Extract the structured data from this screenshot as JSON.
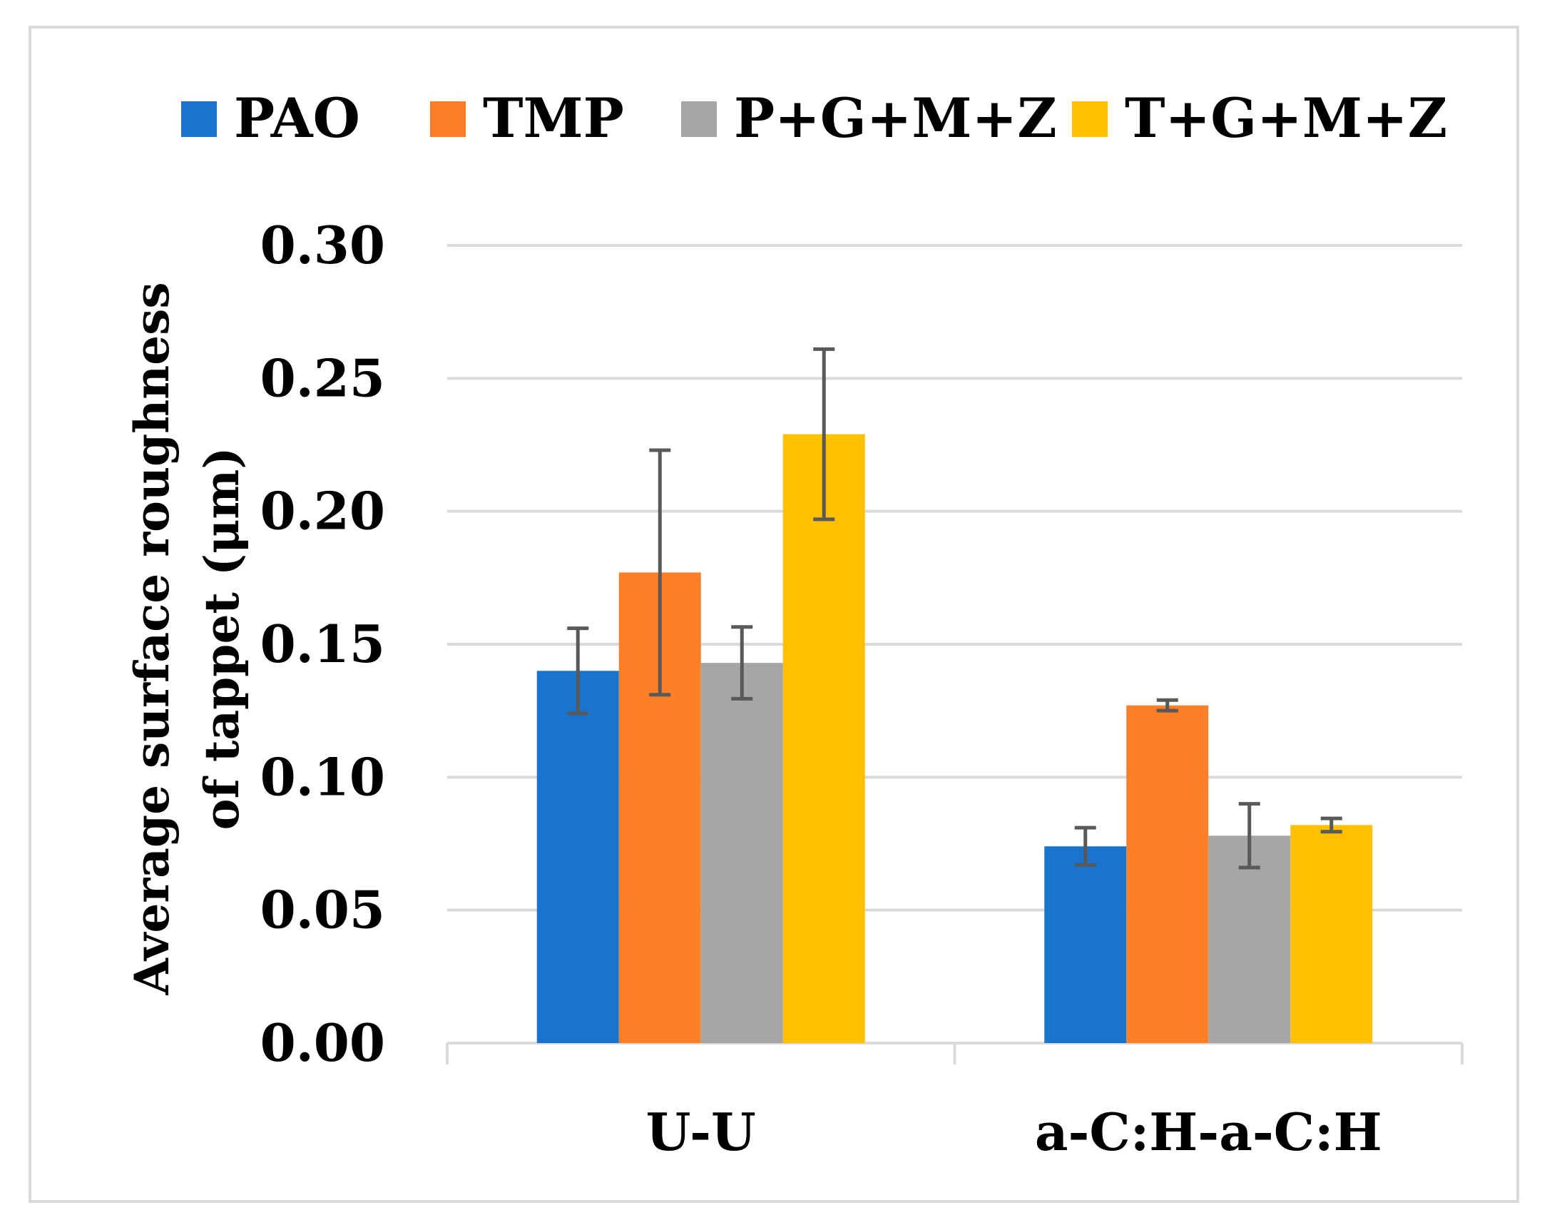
{
  "chart_data": {
    "type": "bar",
    "categories": [
      "U-U",
      "a-C:H-a-C:H"
    ],
    "series": [
      {
        "name": "PAO",
        "color": "#1874cd",
        "values": [
          0.14,
          0.074
        ],
        "errors": [
          0.016,
          0.007
        ]
      },
      {
        "name": "TMP",
        "color": "#fd7f28",
        "values": [
          0.177,
          0.127
        ],
        "errors": [
          0.046,
          0.002
        ]
      },
      {
        "name": "P+G+M+Z",
        "color": "#a6a6a6",
        "values": [
          0.143,
          0.078
        ],
        "errors": [
          0.0135,
          0.012
        ]
      },
      {
        "name": "T+G+M+Z",
        "color": "#ffc000",
        "values": [
          0.229,
          0.082
        ],
        "errors": [
          0.032,
          0.0025
        ]
      }
    ],
    "ylabel_lines": [
      "Average surface roughness",
      "of tappet (μm)"
    ],
    "ylim": [
      0,
      0.3
    ],
    "yticks": [
      "0.00",
      "0.05",
      "0.10",
      "0.15",
      "0.20",
      "0.25",
      "0.30"
    ],
    "grid": true,
    "legend_position": "top",
    "error_bar_color": "#595959"
  }
}
